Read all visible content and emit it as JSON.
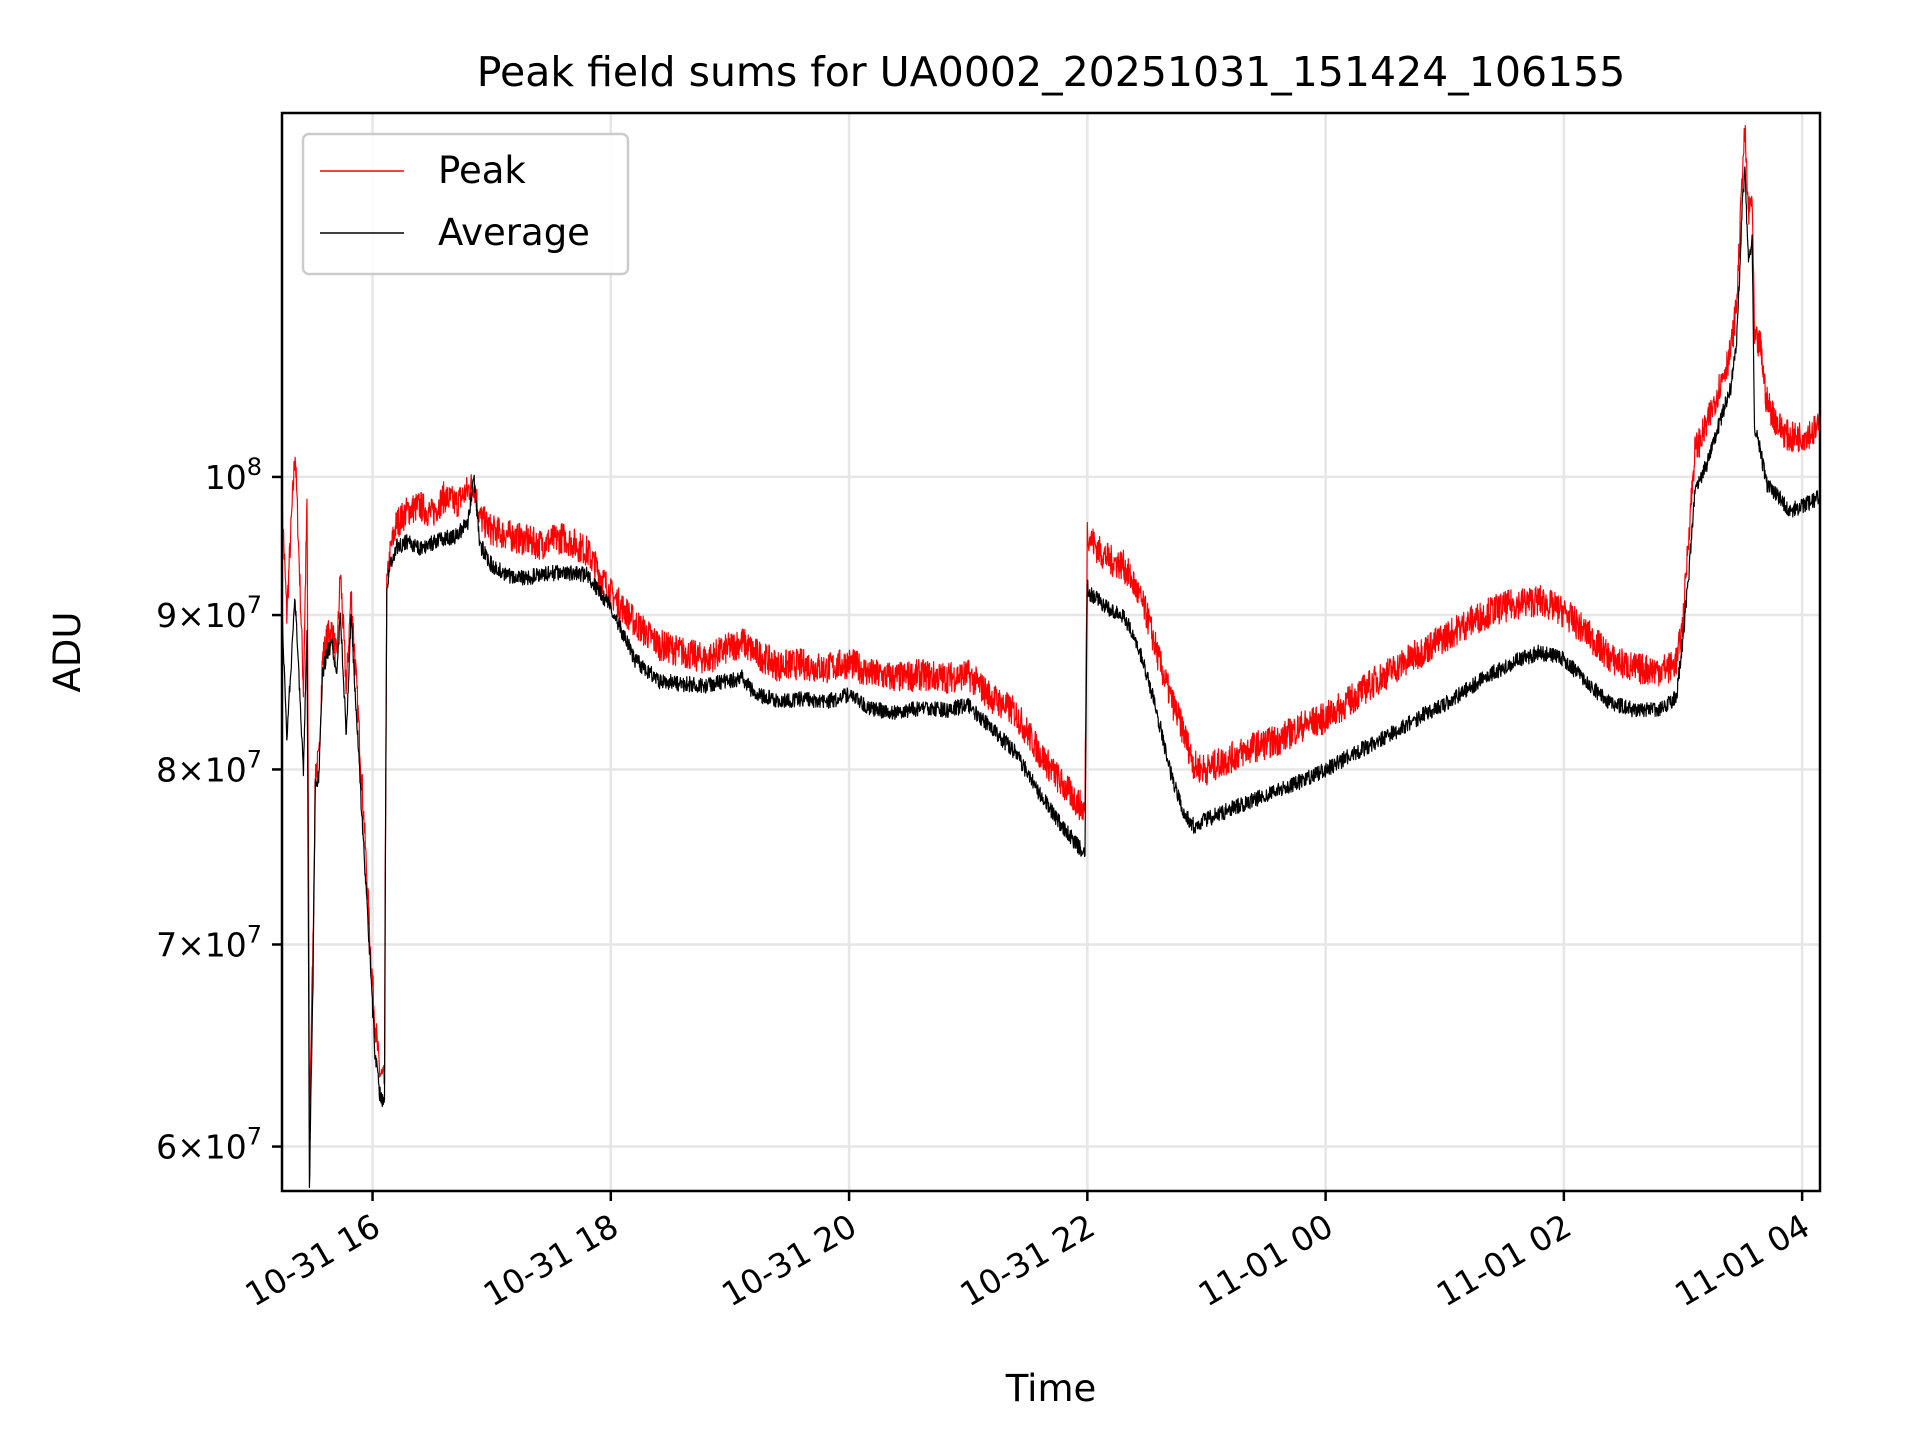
{
  "chart_data": {
    "type": "line",
    "title": "Peak field sums for UA0002_20251031_151424_106155",
    "xlabel": "Time",
    "ylabel": "ADU",
    "yscale": "log",
    "ylim": [
      58000000,
      132000000
    ],
    "xlim_hours": [
      15.24,
      28.15
    ],
    "grid": true,
    "legend_position": "upper-left",
    "x_ticks": [
      {
        "hour": 16,
        "label": "10-31 16"
      },
      {
        "hour": 18,
        "label": "10-31 18"
      },
      {
        "hour": 20,
        "label": "10-31 20"
      },
      {
        "hour": 22,
        "label": "10-31 22"
      },
      {
        "hour": 24,
        "label": "11-01 00"
      },
      {
        "hour": 26,
        "label": "11-01 02"
      },
      {
        "hour": 28,
        "label": "11-01 04"
      }
    ],
    "y_ticks": [
      {
        "value": 60000000,
        "mantissa": "6",
        "exp": "7"
      },
      {
        "value": 70000000,
        "mantissa": "7",
        "exp": "7"
      },
      {
        "value": 80000000,
        "mantissa": "8",
        "exp": "7"
      },
      {
        "value": 90000000,
        "mantissa": "9",
        "exp": "7"
      },
      {
        "value": 100000000,
        "mantissa": "",
        "exp": "8"
      }
    ],
    "tick_base": "10",
    "times_sign": "×",
    "series": [
      {
        "name": "Peak",
        "color": "#ff0000",
        "x": [
          15.24,
          15.28,
          15.35,
          15.42,
          15.45,
          15.47,
          15.5,
          15.52,
          15.55,
          15.58,
          15.62,
          15.66,
          15.7,
          15.73,
          15.78,
          15.82,
          15.86,
          15.92,
          15.98,
          16.02,
          16.06,
          16.1,
          16.12,
          16.15,
          16.2,
          16.3,
          16.4,
          16.5,
          16.6,
          16.7,
          16.8,
          16.85,
          16.9,
          17.0,
          17.2,
          17.4,
          17.6,
          17.8,
          18.0,
          18.2,
          18.4,
          18.6,
          18.8,
          19.0,
          19.1,
          19.2,
          19.4,
          19.6,
          19.8,
          20.0,
          20.2,
          20.4,
          20.6,
          20.8,
          21.0,
          21.2,
          21.4,
          21.6,
          21.8,
          21.98,
          22.0,
          22.02,
          22.1,
          22.2,
          22.3,
          22.4,
          22.5,
          22.6,
          22.7,
          22.8,
          22.9,
          23.0,
          23.2,
          23.4,
          23.6,
          23.8,
          24.0,
          24.2,
          24.4,
          24.6,
          24.8,
          25.0,
          25.2,
          25.4,
          25.6,
          25.8,
          26.0,
          26.2,
          26.4,
          26.6,
          26.8,
          26.9,
          26.95,
          27.0,
          27.05,
          27.1,
          27.2,
          27.3,
          27.4,
          27.45,
          27.48,
          27.5,
          27.52,
          27.55,
          27.58,
          27.6,
          27.65,
          27.7,
          27.8,
          27.9,
          28.0,
          28.15
        ],
        "y": [
          98000000,
          90000000,
          102000000,
          85000000,
          98000000,
          61000000,
          70000000,
          80000000,
          80500000,
          87000000,
          88500000,
          89000000,
          87000000,
          93000000,
          85000000,
          91500000,
          86000000,
          78000000,
          70000000,
          66000000,
          63500000,
          63000000,
          92000000,
          94500000,
          96500000,
          97500000,
          97800000,
          97200000,
          98500000,
          98000000,
          99000000,
          99500000,
          97000000,
          96000000,
          95500000,
          95000000,
          95500000,
          94500000,
          91500000,
          89500000,
          88000000,
          87500000,
          87000000,
          87800000,
          88200000,
          87500000,
          86600000,
          86700000,
          86400000,
          86800000,
          86000000,
          85800000,
          86000000,
          85800000,
          86000000,
          84500000,
          83500000,
          81000000,
          79000000,
          77500000,
          96000000,
          95500000,
          94500000,
          93800000,
          93500000,
          92000000,
          90000000,
          87000000,
          84500000,
          82500000,
          80200000,
          80000000,
          80700000,
          81400000,
          81800000,
          82700000,
          83200000,
          84300000,
          85500000,
          86500000,
          87500000,
          88500000,
          89500000,
          90300000,
          90800000,
          91000000,
          90200000,
          88700000,
          87000000,
          86400000,
          86300000,
          86500000,
          87000000,
          89500000,
          96000000,
          102000000,
          104000000,
          107000000,
          110000000,
          114000000,
          121000000,
          127000000,
          130000000,
          122000000,
          124000000,
          111000000,
          110500000,
          106000000,
          104000000,
          103000000,
          103200000,
          103800000
        ]
      },
      {
        "name": "Average",
        "color": "#000000",
        "x": [
          15.24,
          15.28,
          15.35,
          15.42,
          15.45,
          15.47,
          15.5,
          15.52,
          15.55,
          15.58,
          15.62,
          15.66,
          15.7,
          15.73,
          15.78,
          15.82,
          15.86,
          15.92,
          15.98,
          16.02,
          16.06,
          16.1,
          16.12,
          16.15,
          16.2,
          16.3,
          16.4,
          16.5,
          16.6,
          16.7,
          16.8,
          16.85,
          16.9,
          17.0,
          17.2,
          17.4,
          17.6,
          17.8,
          18.0,
          18.2,
          18.4,
          18.6,
          18.8,
          19.0,
          19.1,
          19.2,
          19.4,
          19.6,
          19.8,
          20.0,
          20.2,
          20.4,
          20.6,
          20.8,
          21.0,
          21.2,
          21.4,
          21.6,
          21.8,
          21.98,
          22.0,
          22.02,
          22.1,
          22.2,
          22.3,
          22.4,
          22.5,
          22.6,
          22.7,
          22.8,
          22.9,
          23.0,
          23.2,
          23.4,
          23.6,
          23.8,
          24.0,
          24.2,
          24.4,
          24.6,
          24.8,
          25.0,
          25.2,
          25.4,
          25.6,
          25.8,
          26.0,
          26.2,
          26.4,
          26.6,
          26.8,
          26.9,
          26.95,
          27.0,
          27.05,
          27.1,
          27.2,
          27.3,
          27.4,
          27.45,
          27.48,
          27.5,
          27.52,
          27.55,
          27.58,
          27.6,
          27.65,
          27.7,
          27.8,
          27.9,
          28.0,
          28.15
        ],
        "y": [
          90000000,
          82000000,
          91000000,
          80000000,
          89000000,
          58000000,
          68000000,
          79000000,
          79500000,
          86000000,
          87500000,
          88000000,
          86000000,
          90000000,
          82000000,
          90000000,
          84000000,
          76000000,
          69000000,
          64500000,
          62500000,
          62000000,
          92000000,
          93500000,
          94800000,
          95200000,
          94700000,
          95100000,
          95400000,
          95600000,
          96500000,
          100000000,
          95000000,
          93500000,
          92500000,
          92800000,
          93000000,
          92800000,
          90500000,
          87000000,
          85600000,
          85400000,
          85300000,
          85600000,
          85800000,
          84800000,
          84300000,
          84400000,
          84200000,
          84700000,
          83700000,
          83600000,
          83800000,
          83700000,
          84000000,
          82500000,
          81000000,
          78500000,
          76500000,
          75000000,
          92000000,
          91500000,
          91000000,
          90200000,
          90000000,
          88500000,
          86000000,
          83000000,
          79800000,
          77500000,
          76600000,
          77000000,
          77600000,
          78200000,
          78700000,
          79300000,
          80000000,
          80800000,
          81600000,
          82400000,
          83300000,
          84100000,
          85100000,
          86100000,
          86900000,
          87500000,
          87000000,
          85400000,
          84100000,
          83700000,
          83800000,
          84200000,
          84800000,
          88500000,
          93000000,
          99000000,
          101000000,
          104000000,
          107000000,
          111000000,
          118000000,
          124000000,
          126000000,
          118000000,
          120000000,
          104000000,
          102000000,
          99500000,
          98500000,
          97500000,
          97800000,
          98500000
        ]
      }
    ]
  }
}
